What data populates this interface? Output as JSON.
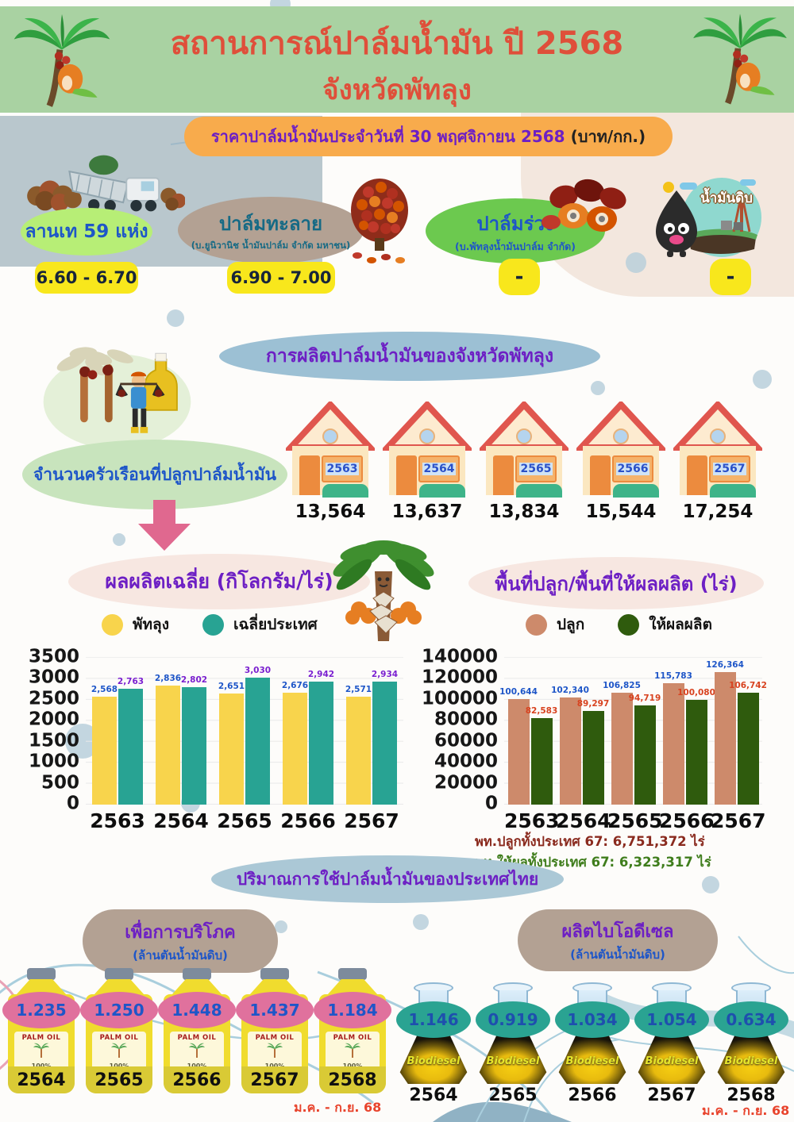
{
  "header": {
    "title_line1": "สถานการณ์ปาล์มน้ำมัน ปี 2568",
    "title_line2": "จังหวัดพัทลุง"
  },
  "price_banner": {
    "text": "ราคาปาล์มน้ำมันประจำวันที่ 30 พฤศจิกายน 2568",
    "unit": "(บาท/กก.)"
  },
  "prices": [
    {
      "name": "ลานเท 59 แห่ง",
      "value": "6.60 - 6.70"
    },
    {
      "name": "ปาล์มทะลาย",
      "company": "(บ.ยูนิวานิช น้ำมันปาล์ม จำกัด มหาชน)",
      "value": "6.90 - 7.00"
    },
    {
      "name": "ปาล์มร่วง",
      "company": "(บ.พัทลุงน้ำมันปาล์ม จำกัด)",
      "value": "-"
    },
    {
      "name": "น้ำมันดิบ",
      "value": "-"
    }
  ],
  "production": {
    "banner": "การผลิตปาล์มน้ำมันของจังหวัดพัทลุง",
    "households_label": "จำนวนครัวเรือนที่ปลูกปาล์มน้ำมัน",
    "households": [
      {
        "year": "2563",
        "value": "13,564"
      },
      {
        "year": "2564",
        "value": "13,637"
      },
      {
        "year": "2565",
        "value": "13,834"
      },
      {
        "year": "2566",
        "value": "15,544"
      },
      {
        "year": "2567",
        "value": "17,254"
      }
    ]
  },
  "chart_data": [
    {
      "type": "bar",
      "title": "ผลผลิตเฉลี่ย (กิโลกรัม/ไร่)",
      "categories": [
        "2563",
        "2564",
        "2565",
        "2566",
        "2567"
      ],
      "series": [
        {
          "name": "พัทลุง",
          "color": "#f8d44c",
          "label_color": "#1e56c8",
          "values": [
            2568,
            2836,
            2651,
            2676,
            2571
          ]
        },
        {
          "name": "เฉลี่ยประเทศ",
          "color": "#28a393",
          "label_color": "#7a1fd0",
          "values": [
            2763,
            2802,
            3030,
            2942,
            2934
          ]
        }
      ],
      "xlabel": "",
      "ylabel": "",
      "ylim": [
        0,
        3500
      ],
      "yticks": [
        0,
        500,
        1000,
        1500,
        2000,
        2500,
        3000,
        3500
      ],
      "grid": true,
      "legend_position": "top"
    },
    {
      "type": "bar",
      "title": "พื้นที่ปลูก/พื้นที่ให้ผลผลิต (ไร่)",
      "categories": [
        "2563",
        "2564",
        "2565",
        "2566",
        "2567"
      ],
      "series": [
        {
          "name": "ปลูก",
          "color": "#cd8a6b",
          "label_color": "#1e56c8",
          "values": [
            100644,
            102340,
            106825,
            115783,
            126364
          ]
        },
        {
          "name": "ให้ผลผลิต",
          "color": "#2f5b0d",
          "label_color": "#d8421f",
          "values": [
            82583,
            89297,
            94719,
            100080,
            106742
          ]
        }
      ],
      "xlabel": "",
      "ylabel": "",
      "ylim": [
        0,
        140000
      ],
      "yticks": [
        0,
        20000,
        40000,
        60000,
        80000,
        100000,
        120000,
        140000
      ],
      "grid": true,
      "legend_position": "top"
    }
  ],
  "totals": {
    "planted": "พท.ปลูกทั้งประเทศ 67: 6,751,372 ไร่",
    "productive": "พท.ให้ผลทั้งประเทศ 67: 6,323,317 ไร่"
  },
  "usage": {
    "banner": "ปริมาณการใช้ปาล์มน้ำมันของประเทศไทย",
    "consumption": {
      "title": "เพื่อการบริโภค",
      "subtitle": "(ล้านตันน้ำมันดิบ)",
      "bottle_brand": "PALM OIL",
      "bottle_pct": "100%",
      "period": "ม.ค. - ก.ย. 68",
      "items": [
        {
          "year": "2564",
          "value": "1.235"
        },
        {
          "year": "2565",
          "value": "1.250"
        },
        {
          "year": "2566",
          "value": "1.448"
        },
        {
          "year": "2567",
          "value": "1.437"
        },
        {
          "year": "2568",
          "value": "1.184"
        }
      ]
    },
    "biodiesel": {
      "title": "ผลิตไบโอดีเซล",
      "subtitle": "(ล้านตันน้ำมันดิบ)",
      "flask_label": "Biodiesel",
      "period": "ม.ค. - ก.ย. 68",
      "items": [
        {
          "year": "2564",
          "value": "1.146"
        },
        {
          "year": "2565",
          "value": "0.919"
        },
        {
          "year": "2566",
          "value": "1.034"
        },
        {
          "year": "2567",
          "value": "1.054"
        },
        {
          "year": "2568",
          "value": "0.634"
        }
      ]
    }
  },
  "colors": {
    "header_green": "#a9d2a2",
    "title_red": "#df4f3a",
    "price_banner_orange": "#f8ab4c",
    "accent_purple": "#6d1fc4",
    "value_blue": "#1e56c8",
    "badge_yellow": "#f8e71c",
    "phatthalung_yellow": "#f8d44c",
    "national_teal": "#28a393",
    "planted_salmon": "#cd8a6b",
    "productive_green": "#2f5b0d",
    "period_red": "#e8432c"
  }
}
